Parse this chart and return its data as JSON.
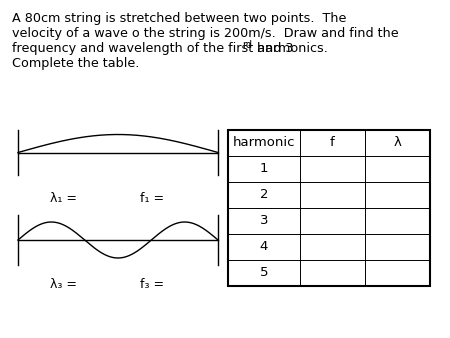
{
  "bg_color": "#ffffff",
  "table_headers": [
    "harmonic",
    "f",
    "λ"
  ],
  "table_rows": [
    "1",
    "2",
    "3",
    "4",
    "5"
  ],
  "wave1_label_lambda": "λ₁ =",
  "wave1_label_f": "f₁ =",
  "wave3_label_lambda": "λ₃ =",
  "wave3_label_f": "f₃ =",
  "font_size_title": 9.2,
  "font_size_labels": 9.0,
  "font_size_table": 9.5,
  "font_size_super": 7.0
}
